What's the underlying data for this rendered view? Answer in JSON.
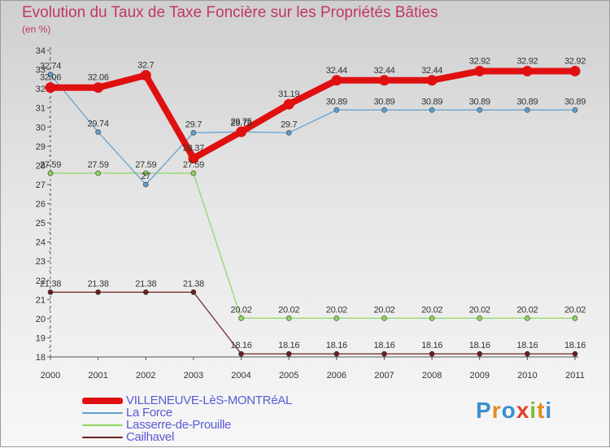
{
  "title": "Evolution du Taux de Taxe Foncière sur les Propriétés Bâties",
  "unit_label": "(en %)",
  "logo": {
    "text": "Proxiti",
    "letters": [
      {
        "ch": "P",
        "color": "#3a8fd0"
      },
      {
        "ch": "r",
        "color": "#e38b1e"
      },
      {
        "ch": "o",
        "color": "#3a8fd0"
      },
      {
        "ch": "x",
        "color": "#e0402a"
      },
      {
        "ch": "i",
        "color": "#7bbd2f"
      },
      {
        "ch": "t",
        "color": "#e38b1e"
      },
      {
        "ch": "i",
        "color": "#3a8fd0"
      }
    ]
  },
  "chart_data": {
    "type": "line",
    "title": "Evolution du Taux de Taxe Foncière sur les Propriétés Bâties",
    "ylabel": "(en %)",
    "xlabel": "",
    "ylim": [
      18,
      34
    ],
    "yticks": [
      18,
      19,
      20,
      21,
      22,
      23,
      24,
      25,
      26,
      27,
      28,
      29,
      30,
      31,
      32,
      33,
      34
    ],
    "x": [
      "2000",
      "2001",
      "2002",
      "2003",
      "2004",
      "2005",
      "2006",
      "2007",
      "2008",
      "2009",
      "2010",
      "2011"
    ],
    "grid": false,
    "legend_position": "bottom-left",
    "series": [
      {
        "name": "Cailhavel",
        "color": "#6b1f1f",
        "values": [
          21.38,
          21.38,
          21.38,
          21.38,
          18.16,
          18.16,
          18.16,
          18.16,
          18.16,
          18.16,
          18.16,
          18.16
        ],
        "labels": [
          "21.38",
          "21.38",
          "21.38",
          "21.38",
          "18.16",
          "18.16",
          "18.16",
          "18.16",
          "18.16",
          "18.16",
          "18.16",
          "18.16"
        ]
      },
      {
        "name": "Lasserre-de-Prouille",
        "color": "#8fd660",
        "values": [
          27.59,
          27.59,
          27.59,
          27.59,
          20.02,
          20.02,
          20.02,
          20.02,
          20.02,
          20.02,
          20.02,
          20.02
        ],
        "labels": [
          "27.59",
          "27.59",
          "27.59",
          "27.59",
          "20.02",
          "20.02",
          "20.02",
          "20.02",
          "20.02",
          "20.02",
          "20.02",
          "20.02"
        ]
      },
      {
        "name": "La Force",
        "color": "#5e9fd0",
        "values": [
          32.74,
          29.74,
          27.0,
          29.7,
          29.75,
          29.7,
          30.89,
          30.89,
          30.89,
          30.89,
          30.89,
          30.89
        ],
        "labels": [
          "32.74",
          "29.74",
          "27",
          "29.7",
          "29.75",
          "29.7",
          "30.89",
          "30.89",
          "30.89",
          "30.89",
          "30.89",
          "30.89"
        ]
      },
      {
        "name": "VILLENEUVE-LèS-MONTRéAL",
        "color": "#e01010",
        "values": [
          32.06,
          32.06,
          32.7,
          28.37,
          29.75,
          31.19,
          32.44,
          32.44,
          32.44,
          32.92,
          32.92,
          32.92
        ],
        "labels": [
          "32.06",
          "32.06",
          "32.7",
          "28.37",
          "29.75",
          "31.19",
          "32.44",
          "32.44",
          "32.44",
          "32.92",
          "32.92",
          "32.92"
        ]
      }
    ],
    "legend": [
      {
        "name": "VILLENEUVE-LèS-MONTRéAL",
        "color": "#e01010"
      },
      {
        "name": "La Force",
        "color": "#5e9fd0"
      },
      {
        "name": "Lasserre-de-Prouille",
        "color": "#8fd660"
      },
      {
        "name": "Cailhavel",
        "color": "#6b1f1f"
      }
    ]
  }
}
